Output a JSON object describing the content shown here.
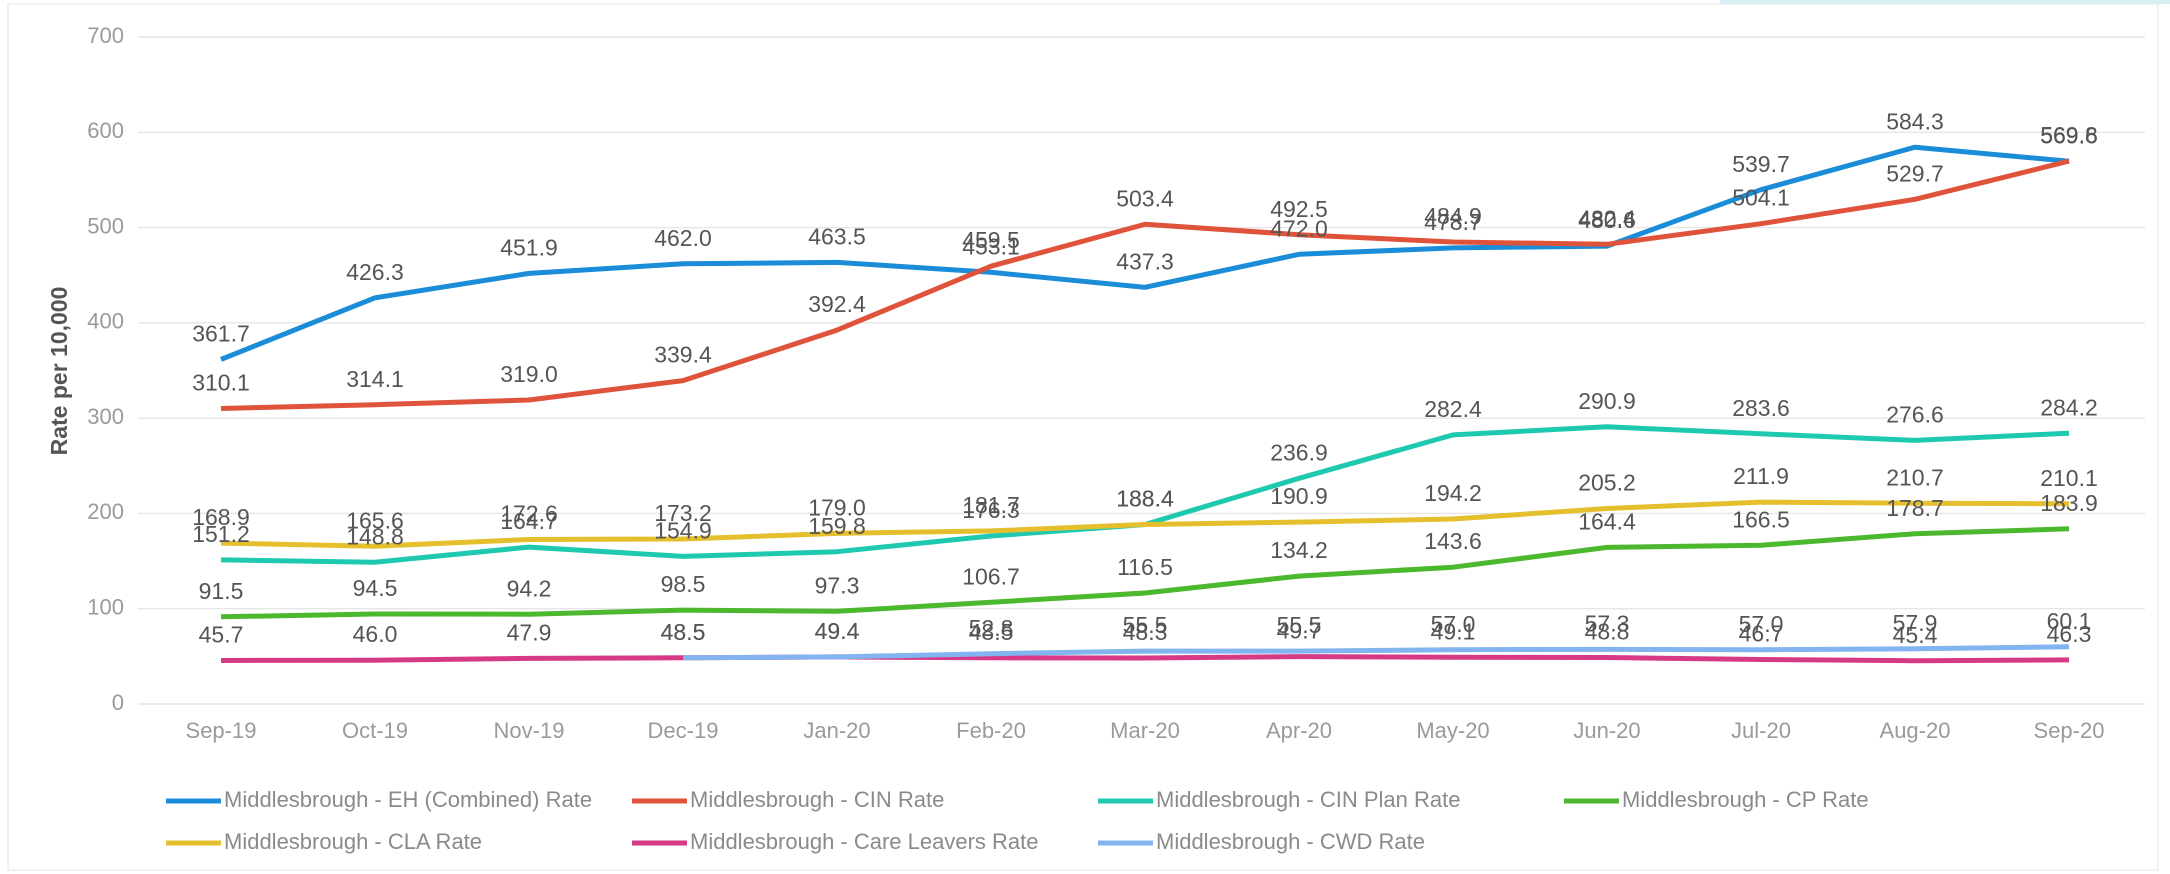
{
  "chart_data": {
    "type": "line",
    "y_label": "Rate per 10,000",
    "categories": [
      "Sep-19",
      "Oct-19",
      "Nov-19",
      "Dec-19",
      "Jan-20",
      "Feb-20",
      "Mar-20",
      "Apr-20",
      "May-20",
      "Jun-20",
      "Jul-20",
      "Aug-20",
      "Sep-20"
    ],
    "ylim": [
      0,
      700
    ],
    "yticks": [
      0,
      100,
      200,
      300,
      400,
      500,
      600,
      700
    ],
    "grid": true,
    "legend": "bottom",
    "series": [
      {
        "name": "Middlesbrough - EH (Combined) Rate",
        "color": "#1a8cd8",
        "values": [
          361.7,
          426.3,
          451.9,
          462.0,
          463.5,
          453.1,
          437.3,
          472.0,
          478.7,
          480.6,
          539.7,
          584.3,
          569.6
        ],
        "value_labels": [
          "361.7",
          "426.3",
          "451.9",
          "462.0",
          "463.5",
          "453.1",
          "437.3",
          "472.0",
          "478.7",
          "480.6",
          "539.7",
          "584.3",
          "569.6"
        ]
      },
      {
        "name": "Middlesbrough - CIN Rate",
        "color": "#e0533b",
        "values": [
          310.1,
          314.1,
          319.0,
          339.4,
          392.4,
          459.5,
          503.4,
          492.5,
          484.9,
          482.4,
          504.1,
          529.7,
          569.8
        ],
        "value_labels": [
          "310.1",
          "314.1",
          "319.0",
          "339.4",
          "392.4",
          "459.5",
          "503.4",
          "492.5",
          "484.9",
          "482.4",
          "504.1",
          "529.7",
          "569.8"
        ]
      },
      {
        "name": "Middlesbrough - CIN Plan Rate",
        "color": "#1fc9b0",
        "values": [
          151.2,
          148.8,
          164.7,
          154.9,
          159.8,
          176.3,
          188.4,
          236.9,
          282.4,
          290.9,
          283.6,
          276.6,
          284.2
        ],
        "value_labels": [
          "151.2",
          "148.8",
          "164.7",
          "154.9",
          "159.8",
          "176.3",
          "188.4",
          "236.9",
          "282.4",
          "290.9",
          "283.6",
          "276.6",
          "284.2"
        ]
      },
      {
        "name": "Middlesbrough - CP Rate",
        "color": "#4cb82e",
        "values": [
          91.5,
          94.5,
          94.2,
          98.5,
          97.3,
          106.7,
          116.5,
          134.2,
          143.6,
          164.4,
          166.5,
          178.7,
          183.9
        ],
        "value_labels": [
          "91.5",
          "94.5",
          "94.2",
          "98.5",
          "97.3",
          "106.7",
          "116.5",
          "134.2",
          "143.6",
          "164.4",
          "166.5",
          "178.7",
          "183.9"
        ]
      },
      {
        "name": "Middlesbrough - CLA Rate",
        "color": "#e6bf2e",
        "values": [
          168.9,
          165.6,
          172.6,
          173.2,
          179.0,
          181.7,
          188.4,
          190.9,
          194.2,
          205.2,
          211.9,
          210.7,
          210.1
        ],
        "value_labels": [
          "168.9",
          "165.6",
          "172.6",
          "173.2",
          "179.0",
          "181.7",
          "188.4",
          "190.9",
          "194.2",
          "205.2",
          "211.9",
          "210.7",
          "210.1"
        ]
      },
      {
        "name": "Middlesbrough - Care Leavers Rate",
        "color": "#d63a86",
        "values": [
          45.7,
          46.0,
          47.9,
          48.5,
          49.4,
          48.5,
          48.3,
          49.7,
          49.1,
          48.8,
          46.7,
          45.4,
          46.3
        ],
        "value_labels": [
          "45.7",
          "46.0",
          "47.9",
          "48.5",
          "49.4",
          "48.5",
          "48.3",
          "49.7",
          "49.1",
          "48.8",
          "46.7",
          "45.4",
          "46.3"
        ]
      },
      {
        "name": "Middlesbrough - CWD Rate",
        "color": "#82b4f0",
        "values": [
          null,
          null,
          null,
          48.5,
          49.4,
          52.8,
          55.5,
          55.5,
          57.0,
          57.3,
          57.0,
          57.9,
          60.1
        ],
        "value_labels": [
          null,
          null,
          null,
          "48.5",
          "49.4",
          "52.8",
          "55.5",
          "55.5",
          "57.0",
          "57.3",
          "57.0",
          "57.9",
          "60.1"
        ]
      }
    ]
  }
}
